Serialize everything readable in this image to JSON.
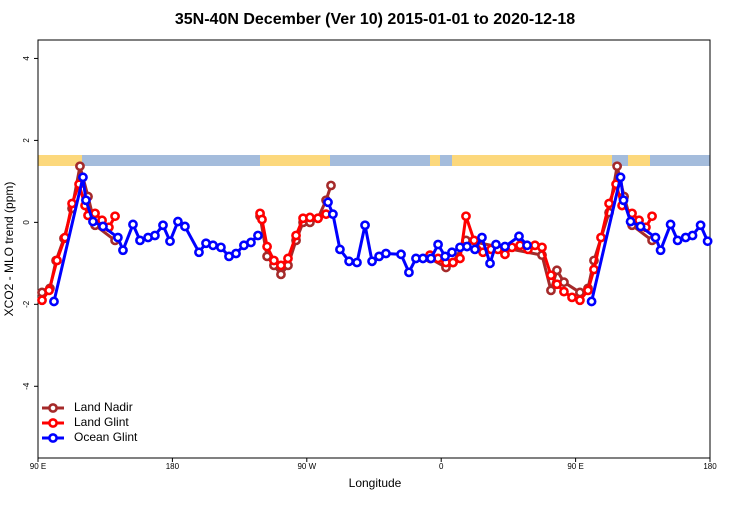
{
  "chart_data": {
    "type": "line",
    "title": "35N-40N December (Ver 10)   2015-01-01 to 2020-12-18",
    "x_label": "Longitude",
    "y_label": "XCO2 - MLO trend (ppm)",
    "xlim": [
      90,
      540
    ],
    "xticks": [
      {
        "value": 90,
        "label": "90 E"
      },
      180,
      {
        "value": 270,
        "label": "90 W"
      },
      {
        "value": 360,
        "label": "0"
      },
      {
        "value": 450,
        "label": "90 E"
      },
      {
        "value": 540,
        "label": "180"
      }
    ],
    "ylim": [
      -5.75,
      4.45
    ],
    "yticks": [
      -4,
      -2,
      0,
      2,
      4
    ],
    "legend": "bottomleft",
    "series": [
      {
        "name": "Land Nadir",
        "color": "#a52a2a",
        "x": [
          92.7,
          98.0,
          102.1,
          107.4,
          112.8,
          118.1,
          123.5,
          128.2,
          141.6,
          null,
          238.7,
          243.4,
          248.0,
          252.7,
          257.4,
          262.8,
          267.5,
          272.1,
          277.5,
          282.9,
          286.2,
          null,
          352.5,
          363.2,
          367.9,
          376.6,
          427.5,
          433.5,
          437.5,
          442.2,
          452.9,
          458.3,
          462.3,
          472.4,
          477.8,
          482.5,
          487.8,
          501.2
        ],
        "values": [
          -1.71,
          -1.61,
          -0.93,
          -0.39,
          0.34,
          1.37,
          0.63,
          -0.07,
          -0.44,
          null,
          0.15,
          -0.83,
          -1.05,
          -1.27,
          -1.05,
          -0.44,
          0.0,
          0.0,
          0.1,
          0.54,
          0.9,
          null,
          -0.88,
          -1.1,
          -0.98,
          -0.44,
          -0.8,
          -1.66,
          -1.17,
          -1.46,
          -1.71,
          -1.61,
          -0.93,
          0.24,
          1.37,
          0.63,
          -0.07,
          -0.44
        ]
      },
      {
        "name": "Land Glint",
        "color": "#ff0000",
        "x": [
          92.7,
          97.4,
          102.7,
          108.1,
          112.8,
          117.5,
          121.5,
          123.5,
          128.2,
          132.9,
          137.5,
          141.6,
          null,
          238.7,
          240.0,
          243.4,
          248.0,
          252.7,
          257.4,
          262.8,
          267.5,
          272.1,
          277.5,
          282.9,
          null,
          352.5,
          357.9,
          363.2,
          367.9,
          372.6,
          376.6,
          382.0,
          388.0,
          393.4,
          398.0,
          402.7,
          407.4,
          412.8,
          418.1,
          422.8,
          427.5,
          433.5,
          437.5,
          442.2,
          447.6,
          452.9,
          458.3,
          462.3,
          467.0,
          472.4,
          477.1,
          481.1,
          487.8,
          492.5,
          497.1,
          501.2
        ],
        "values": [
          -1.9,
          -1.66,
          -0.93,
          -0.37,
          0.46,
          0.93,
          0.41,
          0.17,
          0.22,
          0.05,
          -0.12,
          0.15,
          null,
          0.22,
          0.07,
          -0.59,
          -0.93,
          -1.05,
          -0.88,
          -0.32,
          0.1,
          0.12,
          0.1,
          0.2,
          null,
          -0.8,
          -0.88,
          -0.98,
          -0.98,
          -0.88,
          0.15,
          -0.44,
          -0.73,
          -0.66,
          -0.66,
          -0.78,
          -0.61,
          -0.56,
          -0.66,
          -0.56,
          -0.61,
          -1.29,
          -1.51,
          -1.69,
          -1.83,
          -1.9,
          -1.66,
          -1.15,
          -0.37,
          0.46,
          0.93,
          0.41,
          0.22,
          0.05,
          -0.12,
          0.15
        ]
      },
      {
        "name": "Ocean Glint",
        "color": "#0000ff",
        "x": [
          100.7,
          120.1,
          122.1,
          126.8,
          133.5,
          143.5,
          146.9,
          153.6,
          158.3,
          163.7,
          168.3,
          173.7,
          178.4,
          183.7,
          188.4,
          197.8,
          202.5,
          207.2,
          212.5,
          217.9,
          222.6,
          227.9,
          232.6,
          237.3,
          null,
          284.2,
          287.5,
          292.2,
          298.3,
          303.6,
          309.0,
          313.7,
          318.4,
          323.0,
          333.1,
          338.4,
          343.1,
          347.8,
          353.2,
          357.9,
          362.6,
          367.2,
          372.6,
          377.3,
          382.6,
          387.3,
          392.7,
          396.7,
          402.7,
          412.1,
          417.5,
          null,
          460.7,
          480.1,
          482.1,
          486.8,
          493.5,
          503.5,
          506.9,
          513.6,
          518.3,
          523.7,
          528.3,
          533.7,
          538.4
        ],
        "values": [
          -1.93,
          1.1,
          0.54,
          0.02,
          -0.1,
          -0.37,
          -0.68,
          -0.05,
          -0.44,
          -0.37,
          -0.32,
          -0.07,
          -0.46,
          0.02,
          -0.1,
          -0.73,
          -0.51,
          -0.56,
          -0.61,
          -0.83,
          -0.76,
          -0.56,
          -0.49,
          -0.32,
          null,
          0.49,
          0.2,
          -0.66,
          -0.95,
          -0.98,
          -0.07,
          -0.95,
          -0.83,
          -0.76,
          -0.78,
          -1.22,
          -0.88,
          -0.88,
          -0.88,
          -0.54,
          -0.83,
          -0.73,
          -0.61,
          -0.59,
          -0.66,
          -0.37,
          -1.0,
          -0.54,
          -0.59,
          -0.34,
          -0.56,
          null,
          -1.93,
          1.1,
          0.54,
          0.02,
          -0.1,
          -0.37,
          -0.68,
          -0.05,
          -0.44,
          -0.37,
          -0.32,
          -0.07,
          -0.46
        ]
      }
    ]
  }
}
